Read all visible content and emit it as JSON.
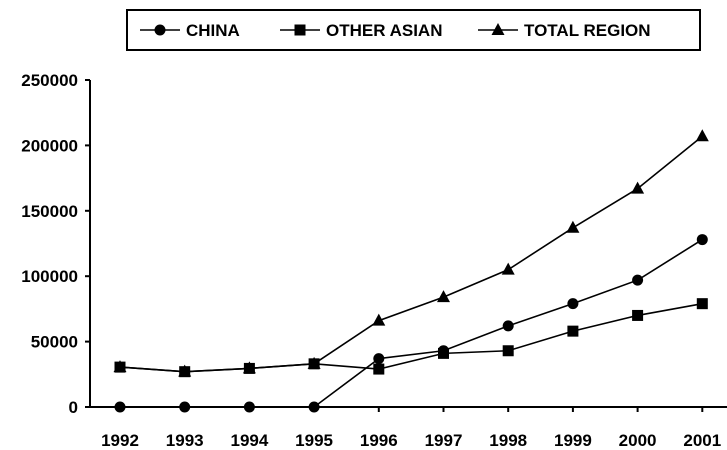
{
  "chart_data": {
    "type": "line",
    "categories": [
      "1992",
      "1993",
      "1994",
      "1995",
      "1996",
      "1997",
      "1998",
      "1999",
      "2000",
      "2001"
    ],
    "ylim": [
      0,
      250000
    ],
    "yticks": [
      0,
      50000,
      100000,
      150000,
      200000,
      250000
    ],
    "ytick_labels": [
      "0",
      "50000",
      "100000",
      "150000",
      "200000",
      "250000"
    ],
    "grid": false,
    "legend_position": "top",
    "series": [
      {
        "name": "CHINA",
        "marker": "circle",
        "values": [
          0,
          0,
          0,
          0,
          37000,
          43000,
          62000,
          79000,
          97000,
          128000
        ]
      },
      {
        "name": "OTHER ASIAN",
        "marker": "square",
        "values": [
          30500,
          27000,
          29500,
          33000,
          29000,
          41000,
          43000,
          58000,
          70000,
          79000
        ]
      },
      {
        "name": "TOTAL REGION",
        "marker": "triangle",
        "values": [
          30500,
          27000,
          29500,
          33000,
          66000,
          84000,
          105000,
          137000,
          167000,
          207000
        ]
      }
    ],
    "color": "#000000"
  }
}
